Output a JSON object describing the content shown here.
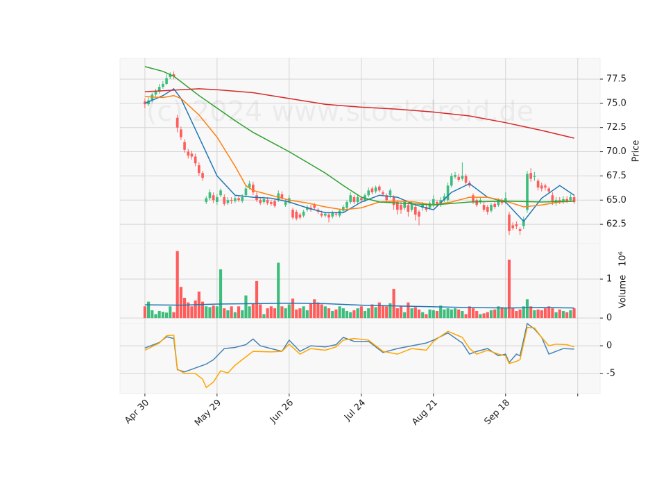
{
  "chart_data": [
    {
      "type": "candlestick",
      "ylabel": "Price",
      "watermark": "(c) 2024 www.stockdroid.de",
      "xlim": [
        -6.9,
        126.2
      ],
      "ylim": [
        60.5,
        79.65
      ],
      "yticks": [
        {
          "value": 62.5,
          "label": "62.5"
        },
        {
          "value": 65,
          "label": "65.0"
        },
        {
          "value": 67.5,
          "label": "67.5"
        },
        {
          "value": 70,
          "label": "70.0"
        },
        {
          "value": 72.5,
          "label": "72.5"
        },
        {
          "value": 75,
          "label": "75.0"
        },
        {
          "value": 77.5,
          "label": "77.5"
        }
      ],
      "up_color": "#3dbd7d",
      "down_color": "#ff5c5c",
      "open": [
        75.2,
        74.9,
        75.3,
        75.9,
        76.2,
        76.7,
        77.0,
        77.7,
        78.0,
        73.5,
        72.3,
        71.0,
        70.0,
        69.8,
        69.5,
        68.6,
        67.8,
        64.8,
        65.2,
        65.5,
        64.8,
        65.5,
        65.3,
        64.7,
        65.0,
        64.9,
        65.2,
        64.9,
        65.5,
        66.3,
        66.6,
        65.5,
        65.0,
        64.8,
        65.0,
        64.8,
        64.9,
        65.0,
        65.6,
        64.5,
        64.8,
        64.0,
        63.8,
        63.5,
        63.4,
        64.0,
        64.2,
        64.5,
        64.0,
        63.6,
        63.4,
        63.5,
        63.3,
        63.6,
        63.4,
        63.9,
        64.2,
        64.8,
        65.3,
        64.8,
        65.2,
        65.0,
        65.5,
        66.2,
        65.9,
        66.4,
        65.8,
        65.5,
        65.5,
        65.3,
        64.8,
        64.5,
        64.2,
        64.5,
        64.0,
        64.3,
        63.8,
        64.2,
        64.3,
        64.2,
        64.5,
        64.8,
        64.5,
        65.0,
        65.0,
        66.5,
        67.4,
        67.4,
        67.2,
        67.5,
        66.8,
        65.5,
        65.0,
        64.8,
        64.5,
        64.3,
        63.9,
        64.6,
        64.5,
        65.0,
        64.8,
        63.5,
        62.4,
        62.5,
        62.0,
        62.3,
        64.0,
        67.8,
        67.4,
        67.0,
        66.5,
        66.5,
        66.2,
        65.5,
        64.7,
        65.0,
        64.8,
        65.1,
        65.0,
        65.3
      ],
      "high": [
        75.5,
        75.6,
        76.1,
        76.5,
        77.0,
        77.3,
        78.0,
        78.2,
        78.3,
        73.8,
        72.6,
        71.3,
        70.3,
        70.1,
        69.8,
        68.9,
        68.0,
        65.4,
        66.1,
        65.8,
        65.6,
        66.2,
        65.6,
        65.3,
        65.3,
        65.5,
        65.4,
        65.6,
        66.5,
        67.0,
        66.9,
        65.8,
        65.3,
        65.4,
        65.3,
        65.0,
        65.1,
        66.0,
        65.9,
        65.1,
        65.5,
        64.2,
        64.0,
        63.7,
        64.0,
        64.5,
        64.5,
        64.7,
        64.2,
        63.9,
        63.8,
        63.7,
        63.9,
        63.8,
        64.1,
        64.5,
        65.0,
        65.8,
        65.5,
        65.5,
        65.4,
        65.7,
        66.3,
        66.4,
        66.5,
        66.6,
        66.0,
        65.7,
        66.2,
        65.5,
        65.0,
        64.8,
        65.0,
        64.8,
        64.9,
        64.5,
        64.0,
        64.8,
        64.5,
        64.9,
        65.5,
        65.0,
        65.3,
        65.7,
        66.8,
        67.8,
        67.9,
        67.7,
        68.9,
        67.7,
        67.0,
        65.7,
        65.2,
        65.3,
        64.8,
        64.5,
        64.7,
        64.9,
        65.2,
        65.2,
        65.8,
        63.8,
        62.7,
        62.8,
        62.2,
        63.3,
        68.0,
        68.3,
        67.9,
        67.2,
        66.8,
        66.7,
        66.4,
        65.8,
        65.3,
        65.3,
        65.4,
        65.4,
        65.6,
        65.6
      ],
      "low": [
        74.5,
        74.7,
        75.1,
        75.7,
        76.0,
        76.5,
        76.9,
        77.5,
        77.5,
        72.0,
        71.2,
        69.9,
        69.3,
        69.2,
        68.5,
        67.5,
        67.0,
        64.6,
        65.0,
        64.7,
        64.5,
        65.3,
        64.4,
        64.5,
        64.6,
        64.7,
        64.8,
        64.7,
        65.3,
        66.1,
        65.5,
        64.8,
        64.5,
        64.6,
        64.5,
        64.4,
        64.2,
        64.8,
        65.0,
        64.3,
        64.6,
        63.0,
        62.9,
        63.0,
        63.2,
        63.8,
        63.8,
        64.0,
        63.6,
        63.2,
        63.2,
        62.7,
        63.1,
        63.3,
        63.2,
        63.7,
        64.0,
        64.6,
        64.6,
        64.6,
        64.8,
        64.8,
        65.3,
        65.6,
        65.7,
        65.8,
        65.4,
        64.8,
        65.2,
        64.0,
        63.5,
        63.6,
        64.0,
        63.3,
        63.8,
        62.9,
        62.4,
        63.9,
        63.8,
        64.0,
        64.3,
        64.3,
        64.3,
        64.8,
        64.8,
        66.3,
        67.2,
        66.9,
        67.0,
        66.5,
        66.3,
        64.6,
        64.3,
        64.6,
        63.8,
        63.5,
        63.7,
        64.1,
        64.3,
        64.5,
        64.6,
        61.4,
        61.9,
        62.0,
        61.4,
        62.0,
        63.7,
        66.9,
        67.0,
        66.0,
        65.9,
        66.0,
        65.7,
        64.5,
        64.4,
        64.6,
        64.6,
        64.7,
        64.9,
        64.6
      ],
      "close": [
        74.9,
        75.3,
        75.9,
        76.2,
        76.7,
        77.0,
        77.6,
        78.0,
        77.8,
        72.5,
        71.5,
        70.2,
        69.6,
        69.5,
        68.8,
        67.8,
        67.3,
        65.2,
        65.8,
        65.0,
        65.3,
        66.0,
        64.6,
        65.0,
        64.9,
        65.2,
        65.0,
        65.3,
        66.2,
        66.7,
        65.8,
        65.0,
        64.7,
        65.1,
        64.7,
        64.6,
        64.4,
        65.7,
        65.2,
        64.8,
        65.2,
        63.2,
        63.1,
        63.2,
        63.8,
        64.3,
        64.0,
        64.2,
        63.8,
        63.4,
        63.6,
        63.2,
        63.7,
        63.5,
        63.9,
        64.3,
        64.8,
        65.5,
        64.8,
        65.3,
        65.0,
        65.5,
        66.0,
        65.8,
        66.3,
        66.0,
        65.6,
        65.0,
        66.0,
        64.5,
        64.0,
        64.0,
        64.8,
        63.8,
        64.6,
        63.5,
        63.3,
        64.6,
        64.0,
        64.7,
        65.1,
        64.5,
        65.0,
        65.4,
        66.5,
        67.5,
        67.6,
        67.1,
        67.5,
        66.8,
        66.5,
        64.8,
        64.5,
        65.0,
        64.0,
        63.8,
        64.5,
        64.3,
        65.0,
        64.7,
        65.2,
        61.8,
        62.1,
        62.3,
        61.8,
        63.0,
        67.7,
        67.2,
        67.5,
        66.3,
        66.2,
        66.3,
        65.9,
        64.8,
        65.0,
        64.8,
        65.1,
        64.9,
        65.3,
        64.8
      ],
      "lines": [
        {
          "color": "#1f77b4",
          "x": [
            0,
            5,
            8,
            10,
            15,
            20,
            25,
            30,
            35,
            40,
            45,
            50,
            55,
            60,
            65,
            70,
            75,
            80,
            85,
            90,
            95,
            100,
            105,
            110,
            115,
            119
          ],
          "values": [
            75.0,
            75.8,
            76.5,
            75.5,
            71.5,
            67.5,
            65.5,
            65.3,
            65.2,
            64.8,
            64.2,
            63.7,
            63.7,
            64.8,
            65.5,
            65.3,
            64.5,
            64.0,
            65.8,
            66.7,
            65.3,
            64.8,
            62.8,
            65.2,
            66.5,
            65.5
          ]
        },
        {
          "color": "#ff7f0e",
          "x": [
            0,
            5,
            8,
            10,
            15,
            20,
            25,
            28,
            30,
            35,
            40,
            45,
            50,
            55,
            60,
            65,
            70,
            75,
            80,
            85,
            90,
            95,
            100,
            105,
            110,
            115,
            119
          ],
          "values": [
            75.7,
            75.6,
            75.8,
            75.5,
            73.8,
            71.5,
            68.5,
            66.5,
            66.0,
            65.5,
            65.0,
            64.7,
            64.3,
            64.0,
            64.2,
            64.8,
            64.9,
            64.8,
            64.5,
            64.8,
            65.3,
            65.3,
            64.9,
            64.3,
            64.5,
            64.8,
            64.9
          ]
        },
        {
          "color": "#2ca02c",
          "x": [
            0,
            5,
            8,
            15,
            20,
            25,
            30,
            40,
            50,
            55,
            60,
            65,
            70,
            80,
            90,
            100,
            110,
            119
          ],
          "values": [
            78.8,
            78.3,
            77.8,
            75.8,
            74.5,
            73.2,
            72.0,
            70.0,
            67.8,
            66.5,
            65.3,
            64.8,
            64.7,
            64.5,
            64.8,
            64.9,
            64.8,
            64.9
          ]
        },
        {
          "color": "#d62728",
          "x": [
            0,
            15,
            20,
            30,
            40,
            50,
            60,
            70,
            80,
            90,
            100,
            110,
            119
          ],
          "values": [
            76.2,
            76.5,
            76.4,
            76.1,
            75.5,
            74.9,
            74.6,
            74.4,
            74.1,
            73.7,
            73.0,
            72.2,
            71.4
          ]
        }
      ]
    },
    {
      "type": "bar",
      "ylabel": "Volume",
      "scale_label": "10⁶",
      "xlim": [
        -6.9,
        126.2
      ],
      "ylim": [
        -0.14,
        1.91
      ],
      "yticks": [
        0,
        1
      ],
      "values": [
        0.3,
        0.42,
        0.2,
        0.1,
        0.18,
        0.16,
        0.14,
        0.3,
        0.15,
        1.72,
        0.8,
        0.52,
        0.4,
        0.3,
        0.45,
        0.68,
        0.42,
        0.3,
        0.28,
        0.32,
        0.3,
        1.25,
        0.25,
        0.2,
        0.3,
        0.15,
        0.3,
        0.2,
        0.58,
        0.3,
        0.38,
        0.95,
        0.35,
        0.1,
        0.25,
        0.3,
        0.25,
        1.42,
        0.3,
        0.25,
        0.35,
        0.5,
        0.22,
        0.25,
        0.3,
        0.2,
        0.38,
        0.48,
        0.4,
        0.35,
        0.3,
        0.25,
        0.18,
        0.22,
        0.3,
        0.25,
        0.18,
        0.15,
        0.2,
        0.25,
        0.3,
        0.18,
        0.25,
        0.35,
        0.28,
        0.4,
        0.32,
        0.3,
        0.38,
        0.75,
        0.25,
        0.3,
        0.15,
        0.4,
        0.25,
        0.28,
        0.22,
        0.15,
        0.1,
        0.22,
        0.2,
        0.18,
        0.32,
        0.22,
        0.25,
        0.22,
        0.25,
        0.22,
        0.18,
        0.1,
        0.3,
        0.25,
        0.18,
        0.1,
        0.12,
        0.15,
        0.2,
        0.22,
        0.3,
        0.28,
        0.25,
        1.5,
        0.25,
        0.18,
        0.22,
        0.3,
        0.48,
        0.3,
        0.2,
        0.22,
        0.2,
        0.25,
        0.3,
        0.25,
        0.15,
        0.22,
        0.18,
        0.15,
        0.2,
        0.25
      ],
      "lines": [
        {
          "color": "#1f77b4",
          "x": [
            0,
            10,
            20,
            30,
            40,
            50,
            60,
            70,
            80,
            90,
            100,
            110,
            119
          ],
          "values": [
            0.34,
            0.33,
            0.36,
            0.37,
            0.38,
            0.37,
            0.33,
            0.31,
            0.29,
            0.27,
            0.26,
            0.27,
            0.26
          ]
        }
      ]
    },
    {
      "type": "line",
      "xlim": [
        -6.9,
        126.2
      ],
      "ylim": [
        -8.6,
        4
      ],
      "yticks": [
        -5,
        0
      ],
      "xticks": [
        {
          "value": 0,
          "label": "Apr 30"
        },
        {
          "value": 20,
          "label": "May 29"
        },
        {
          "value": 40,
          "label": "Jun 26"
        },
        {
          "value": 60,
          "label": "Jul 24"
        },
        {
          "value": 80,
          "label": "Aug 21"
        },
        {
          "value": 100,
          "label": "Sep 18"
        },
        {
          "value": 120,
          "label": null
        }
      ],
      "lines": [
        {
          "color": "#4682b4",
          "x": [
            0,
            4,
            6,
            8,
            9,
            11,
            14,
            17,
            19,
            22,
            25,
            28,
            30,
            32,
            35,
            38,
            40,
            43,
            46,
            50,
            53,
            55,
            58,
            62,
            66,
            70,
            74,
            78,
            80,
            84,
            88,
            90,
            92,
            95,
            98,
            100,
            101,
            103,
            104,
            106,
            108,
            110,
            112,
            114,
            116,
            119
          ],
          "values": [
            -0.4,
            0.6,
            1.6,
            1.3,
            -4.3,
            -4.7,
            -4.0,
            -3.3,
            -2.5,
            -0.5,
            -0.3,
            0.2,
            1.2,
            0.0,
            -0.5,
            -1.0,
            1.0,
            -1.0,
            0.0,
            -0.2,
            0.2,
            1.5,
            0.8,
            0.8,
            -1.2,
            -0.5,
            0.0,
            0.5,
            1.0,
            2.3,
            0.5,
            -1.5,
            -1.0,
            -0.5,
            -1.8,
            -1.5,
            -3.0,
            -1.5,
            -1.8,
            4.0,
            3.0,
            1.5,
            -1.5,
            -1.0,
            -0.5,
            -0.6
          ]
        },
        {
          "color": "#ffa500",
          "x": [
            0,
            4,
            6,
            8,
            9,
            11,
            14,
            16,
            17,
            19,
            21,
            23,
            25,
            28,
            30,
            35,
            38,
            40,
            43,
            46,
            50,
            53,
            55,
            58,
            62,
            66,
            70,
            74,
            78,
            80,
            84,
            88,
            90,
            92,
            95,
            98,
            100,
            101,
            103,
            104,
            106,
            108,
            110,
            112,
            114,
            117,
            119
          ],
          "values": [
            -0.8,
            0.5,
            1.8,
            1.9,
            -4.2,
            -5.0,
            -5.0,
            -6.0,
            -7.5,
            -6.5,
            -4.5,
            -4.9,
            -3.5,
            -2.0,
            -1.0,
            -1.1,
            -1.0,
            0.3,
            -1.5,
            -0.5,
            -0.8,
            -0.2,
            1.0,
            1.3,
            1.0,
            -1.0,
            -1.5,
            -0.5,
            -0.8,
            0.8,
            2.6,
            1.5,
            -0.5,
            -1.5,
            -0.8,
            -1.5,
            -1.8,
            -3.2,
            -2.8,
            -2.5,
            3.3,
            3.2,
            1.5,
            0.0,
            0.3,
            0.2,
            -0.2
          ]
        }
      ]
    }
  ]
}
